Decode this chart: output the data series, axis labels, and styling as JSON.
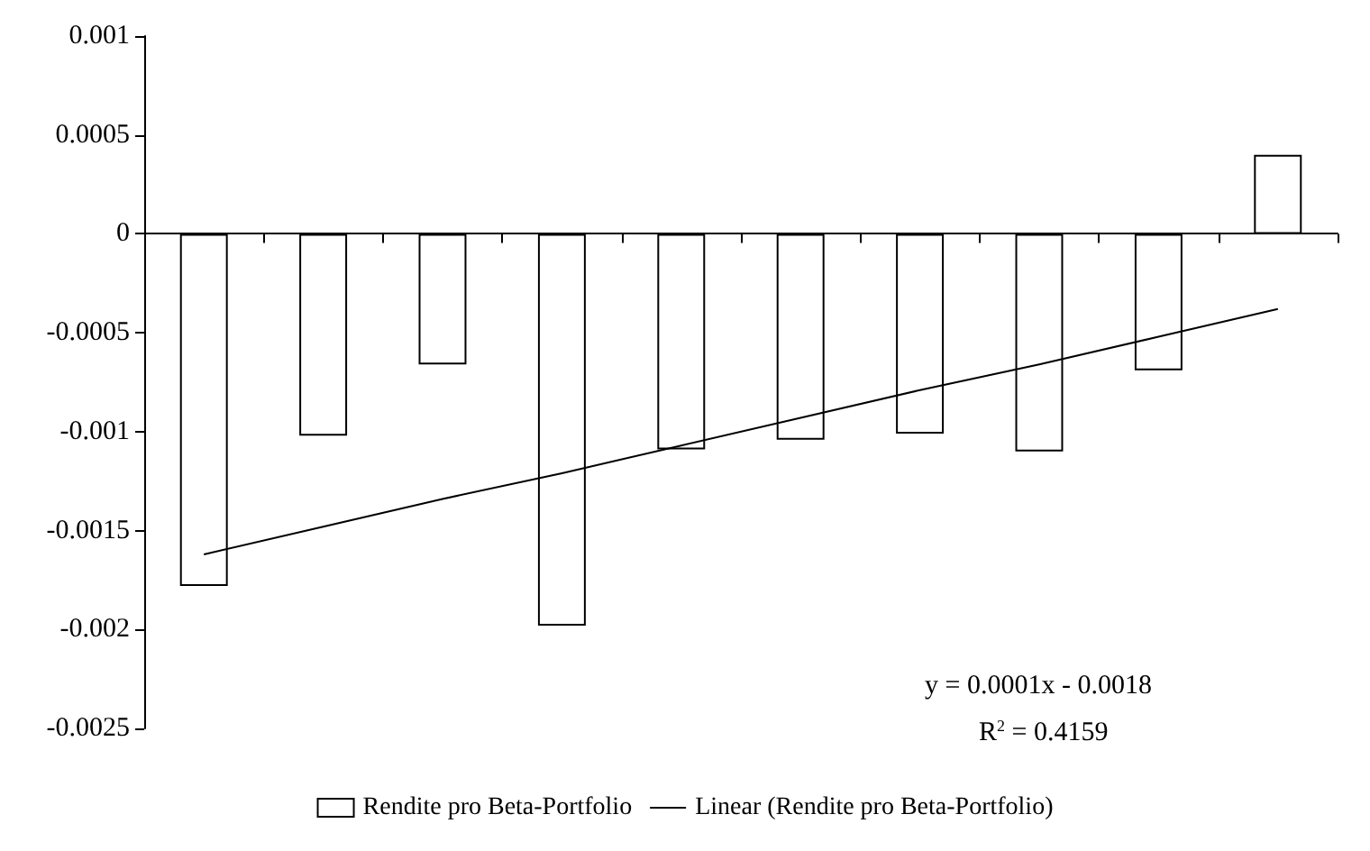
{
  "chart_data": {
    "type": "bar",
    "categories": [
      null,
      null,
      null,
      null,
      null,
      null,
      null,
      null,
      null,
      null
    ],
    "series": [
      {
        "name": "Rendite pro Beta-Portfolio",
        "color": "#ffffff",
        "values": [
          -0.00178,
          -0.00102,
          -0.00066,
          -0.00198,
          -0.00109,
          -0.00104,
          -0.00101,
          -0.0011,
          -0.00069,
          0.0004
        ]
      },
      {
        "name": "Linear (Rendite pro Beta-Portfolio)",
        "type": "line",
        "color": "#000000",
        "values": [
          -0.00162,
          -0.00148,
          -0.00134,
          -0.00121,
          -0.00107,
          -0.00093,
          -0.00079,
          -0.00066,
          -0.00052,
          -0.00038
        ]
      }
    ],
    "ylim": [
      -0.0025,
      0.001
    ],
    "yticks": [
      -0.0025,
      -0.002,
      -0.0015,
      -0.001,
      -0.0005,
      0,
      0.0005,
      0.001
    ],
    "legend": "bottom",
    "marker": "none",
    "line_style": "solid",
    "annotations": [
      "y = 0.0001x - 0.0018",
      "R$^{2}$ = 0.4159"
    ]
  }
}
